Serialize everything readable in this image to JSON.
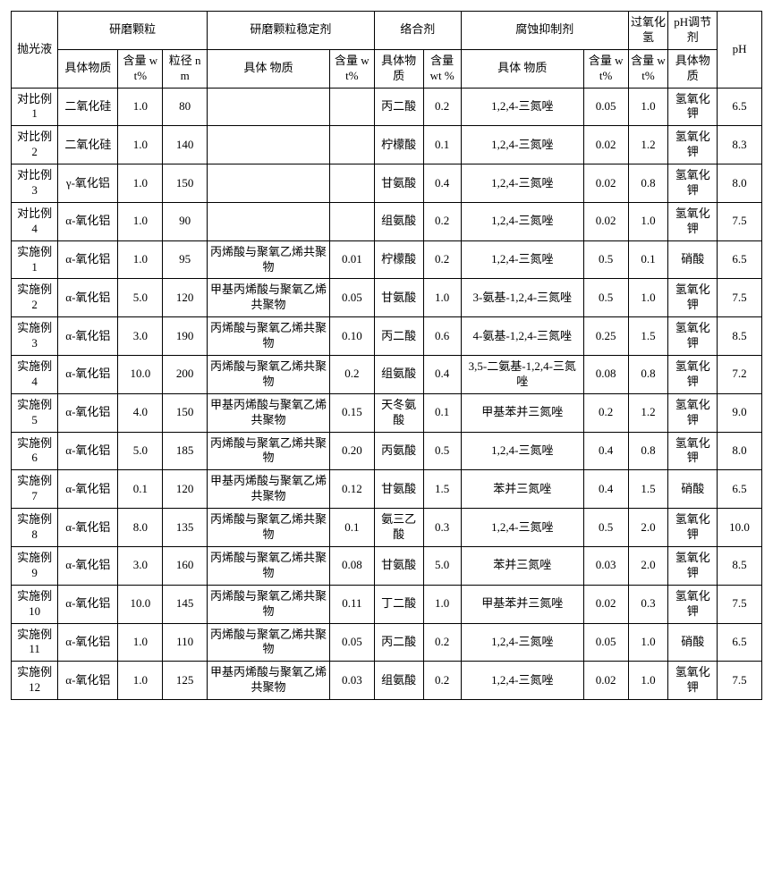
{
  "headers": {
    "row_label": "抛光液",
    "grp_abrasive": "研磨颗粒",
    "grp_stabilizer": "研磨颗粒稳定剂",
    "grp_chelator": "络合剂",
    "grp_corrosion": "腐蚀抑制剂",
    "grp_h2o2": "过氧化氢",
    "grp_phadj": "pH调节剂",
    "grp_ph": "pH",
    "sub_material": "具体物质",
    "sub_material2": "具体\n物质",
    "sub_wt": "含量\nwt%",
    "sub_nm": "粒径\nnm",
    "sub_wt2": "含量\nwt%",
    "sub_wt3": "含量\nwt\n%",
    "sub_wt4": "含量\nwt%",
    "sub_wt5": "含量\nwt%"
  },
  "rows": [
    {
      "label": "对比例 1",
      "abr_mat": "二氧化硅",
      "abr_wt": "1.0",
      "abr_nm": "80",
      "stab_mat": "",
      "stab_wt": "",
      "chel_mat": "丙二酸",
      "chel_wt": "0.2",
      "corr_mat": "1,2,4-三氮唑",
      "corr_wt": "0.05",
      "h2o2": "1.0",
      "phadj": "氢氧化钾",
      "ph": "6.5"
    },
    {
      "label": "对比例 2",
      "abr_mat": "二氧化硅",
      "abr_wt": "1.0",
      "abr_nm": "140",
      "stab_mat": "",
      "stab_wt": "",
      "chel_mat": "柠檬酸",
      "chel_wt": "0.1",
      "corr_mat": "1,2,4-三氮唑",
      "corr_wt": "0.02",
      "h2o2": "1.2",
      "phadj": "氢氧化钾",
      "ph": "8.3"
    },
    {
      "label": "对比例 3",
      "abr_mat": "γ-氧化铝",
      "abr_wt": "1.0",
      "abr_nm": "150",
      "stab_mat": "",
      "stab_wt": "",
      "chel_mat": "甘氨酸",
      "chel_wt": "0.4",
      "corr_mat": "1,2,4-三氮唑",
      "corr_wt": "0.02",
      "h2o2": "0.8",
      "phadj": "氢氧化钾",
      "ph": "8.0"
    },
    {
      "label": "对比例 4",
      "abr_mat": "α-氧化铝",
      "abr_wt": "1.0",
      "abr_nm": "90",
      "stab_mat": "",
      "stab_wt": "",
      "chel_mat": "组氨酸",
      "chel_wt": "0.2",
      "corr_mat": "1,2,4-三氮唑",
      "corr_wt": "0.02",
      "h2o2": "1.0",
      "phadj": "氢氧化钾",
      "ph": "7.5"
    },
    {
      "label": "实施例 1",
      "abr_mat": "α-氧化铝",
      "abr_wt": "1.0",
      "abr_nm": "95",
      "stab_mat": "丙烯酸与聚氧乙烯共聚物",
      "stab_wt": "0.01",
      "chel_mat": "柠檬酸",
      "chel_wt": "0.2",
      "corr_mat": "1,2,4-三氮唑",
      "corr_wt": "0.5",
      "h2o2": "0.1",
      "phadj": "硝酸",
      "ph": "6.5"
    },
    {
      "label": "实施例 2",
      "abr_mat": "α-氧化铝",
      "abr_wt": "5.0",
      "abr_nm": "120",
      "stab_mat": "甲基丙烯酸与聚氧乙烯共聚物",
      "stab_wt": "0.05",
      "chel_mat": "甘氨酸",
      "chel_wt": "1.0",
      "corr_mat": "3-氨基-1,2,4-三氮唑",
      "corr_wt": "0.5",
      "h2o2": "1.0",
      "phadj": "氢氧化钾",
      "ph": "7.5"
    },
    {
      "label": "实施例 3",
      "abr_mat": "α-氧化铝",
      "abr_wt": "3.0",
      "abr_nm": "190",
      "stab_mat": "丙烯酸与聚氧乙烯共聚物",
      "stab_wt": "0.10",
      "chel_mat": "丙二酸",
      "chel_wt": "0.6",
      "corr_mat": "4-氨基-1,2,4-三氮唑",
      "corr_wt": "0.25",
      "h2o2": "1.5",
      "phadj": "氢氧化钾",
      "ph": "8.5"
    },
    {
      "label": "实施例 4",
      "abr_mat": "α-氧化铝",
      "abr_wt": "10.0",
      "abr_nm": "200",
      "stab_mat": "丙烯酸与聚氧乙烯共聚物",
      "stab_wt": "0.2",
      "chel_mat": "组氨酸",
      "chel_wt": "0.4",
      "corr_mat": "3,5-二氨基-1,2,4-三氮唑",
      "corr_wt": "0.08",
      "h2o2": "0.8",
      "phadj": "氢氧化钾",
      "ph": "7.2"
    },
    {
      "label": "实施例 5",
      "abr_mat": "α-氧化铝",
      "abr_wt": "4.0",
      "abr_nm": "150",
      "stab_mat": "甲基丙烯酸与聚氧乙烯共聚物",
      "stab_wt": "0.15",
      "chel_mat": "天冬氨酸",
      "chel_wt": "0.1",
      "corr_mat": "甲基苯并三氮唑",
      "corr_wt": "0.2",
      "h2o2": "1.2",
      "phadj": "氢氧化钾",
      "ph": "9.0"
    },
    {
      "label": "实施例 6",
      "abr_mat": "α-氧化铝",
      "abr_wt": "5.0",
      "abr_nm": "185",
      "stab_mat": "丙烯酸与聚氧乙烯共聚物",
      "stab_wt": "0.20",
      "chel_mat": "丙氨酸",
      "chel_wt": "0.5",
      "corr_mat": "1,2,4-三氮唑",
      "corr_wt": "0.4",
      "h2o2": "0.8",
      "phadj": "氢氧化钾",
      "ph": "8.0"
    },
    {
      "label": "实施例 7",
      "abr_mat": "α-氧化铝",
      "abr_wt": "0.1",
      "abr_nm": "120",
      "stab_mat": "甲基丙烯酸与聚氧乙烯共聚物",
      "stab_wt": "0.12",
      "chel_mat": "甘氨酸",
      "chel_wt": "1.5",
      "corr_mat": "苯并三氮唑",
      "corr_wt": "0.4",
      "h2o2": "1.5",
      "phadj": "硝酸",
      "ph": "6.5"
    },
    {
      "label": "实施例 8",
      "abr_mat": "α-氧化铝",
      "abr_wt": "8.0",
      "abr_nm": "135",
      "stab_mat": "丙烯酸与聚氧乙烯共聚物",
      "stab_wt": "0.1",
      "chel_mat": "氨三乙酸",
      "chel_wt": "0.3",
      "corr_mat": "1,2,4-三氮唑",
      "corr_wt": "0.5",
      "h2o2": "2.0",
      "phadj": "氢氧化钾",
      "ph": "10.0"
    },
    {
      "label": "实施例 9",
      "abr_mat": "α-氧化铝",
      "abr_wt": "3.0",
      "abr_nm": "160",
      "stab_mat": "丙烯酸与聚氧乙烯共聚物",
      "stab_wt": "0.08",
      "chel_mat": "甘氨酸",
      "chel_wt": "5.0",
      "corr_mat": "苯并三氮唑",
      "corr_wt": "0.03",
      "h2o2": "2.0",
      "phadj": "氢氧化钾",
      "ph": "8.5"
    },
    {
      "label": "实施例 10",
      "abr_mat": "α-氧化铝",
      "abr_wt": "10.0",
      "abr_nm": "145",
      "stab_mat": "丙烯酸与聚氧乙烯共聚物",
      "stab_wt": "0.11",
      "chel_mat": "丁二酸",
      "chel_wt": "1.0",
      "corr_mat": "甲基苯并三氮唑",
      "corr_wt": "0.02",
      "h2o2": "0.3",
      "phadj": "氢氧化钾",
      "ph": "7.5"
    },
    {
      "label": "实施例 11",
      "abr_mat": "α-氧化铝",
      "abr_wt": "1.0",
      "abr_nm": "110",
      "stab_mat": "丙烯酸与聚氧乙烯共聚物",
      "stab_wt": "0.05",
      "chel_mat": "丙二酸",
      "chel_wt": "0.2",
      "corr_mat": "1,2,4-三氮唑",
      "corr_wt": "0.05",
      "h2o2": "1.0",
      "phadj": "硝酸",
      "ph": "6.5"
    },
    {
      "label": "实施例 12",
      "abr_mat": "α-氧化铝",
      "abr_wt": "1.0",
      "abr_nm": "125",
      "stab_mat": "甲基丙烯酸与聚氧乙烯共聚物",
      "stab_wt": "0.03",
      "chel_mat": "组氨酸",
      "chel_wt": "0.2",
      "corr_mat": "1,2,4-三氮唑",
      "corr_wt": "0.02",
      "h2o2": "1.0",
      "phadj": "氢氧化钾",
      "ph": "7.5"
    }
  ]
}
